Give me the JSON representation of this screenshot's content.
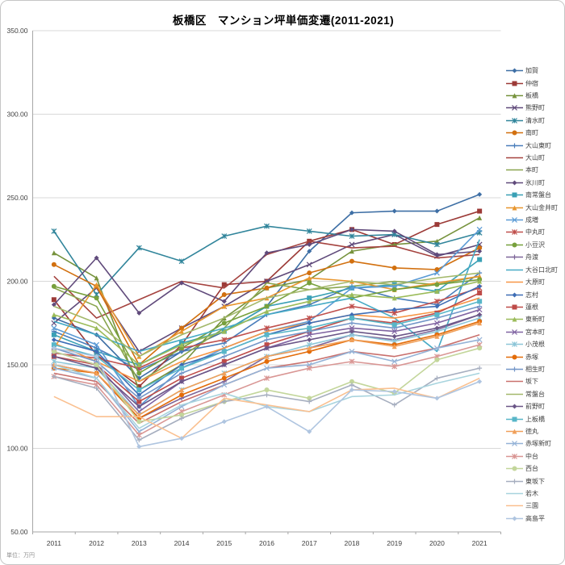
{
  "window": {
    "title": "板橋区　マンション坪単価変遷(2011-2021)"
  },
  "colors": {
    "gridline": "#d9d9d9",
    "axis": "#a6a6a6",
    "tick_label": "#3f3f3f",
    "title": "#000000",
    "frame_border": "#c6c6c6"
  },
  "chart_data": {
    "type": "line",
    "title": "板橋区　マンション坪単価変遷(2011-2021)",
    "unit_note": "単位：万円",
    "x": [
      2011,
      2012,
      2013,
      2014,
      2015,
      2016,
      2017,
      2018,
      2019,
      2020,
      2021
    ],
    "x_tick_labels": [
      "2011",
      "2012",
      "2013",
      "2014",
      "2015",
      "2016",
      "2017",
      "2018",
      "2019",
      "2020",
      "2021"
    ],
    "y_axis": {
      "min": 50,
      "max": 350,
      "step": 50
    },
    "y_tick_labels": [
      "350.00",
      "300.00",
      "250.00",
      "200.00",
      "150.00",
      "100.00",
      "50.00"
    ],
    "grid": true,
    "legend_position": "right",
    "series": [
      {
        "name": "加賀",
        "color": "#3e6fa5",
        "marker": "diamond",
        "values": [
          178,
          168,
          142,
          158,
          170,
          185,
          218,
          241,
          242,
          242,
          252
        ]
      },
      {
        "name": "仲宿",
        "color": "#9c3a37",
        "marker": "square",
        "values": [
          189,
          156,
          137,
          162,
          198,
          200,
          224,
          231,
          222,
          234,
          242
        ]
      },
      {
        "name": "板橋",
        "color": "#76923c",
        "marker": "triangle",
        "values": [
          217,
          202,
          135,
          150,
          178,
          196,
          201,
          218,
          222,
          224,
          238
        ]
      },
      {
        "name": "熊野町",
        "color": "#5f497a",
        "marker": "x",
        "values": [
          175,
          196,
          158,
          172,
          185,
          200,
          210,
          222,
          228,
          215,
          222
        ]
      },
      {
        "name": "清水町",
        "color": "#31859b",
        "marker": "asterisk",
        "values": [
          230,
          192,
          220,
          212,
          227,
          233,
          230,
          227,
          228,
          222,
          229
        ]
      },
      {
        "name": "南町",
        "color": "#d2700f",
        "marker": "circle",
        "values": [
          210,
          197,
          150,
          172,
          192,
          196,
          205,
          212,
          208,
          207,
          220
        ]
      },
      {
        "name": "大山東町",
        "color": "#4a7ebb",
        "marker": "plus",
        "values": [
          170,
          160,
          147,
          158,
          163,
          180,
          186,
          197,
          190,
          186,
          205
        ]
      },
      {
        "name": "大山町",
        "color": "#a5433f",
        "marker": "none",
        "values": [
          203,
          178,
          189,
          200,
          196,
          216,
          224,
          220,
          221,
          214,
          216
        ]
      },
      {
        "name": "本町",
        "color": "#89a54e",
        "marker": "none",
        "values": [
          196,
          185,
          140,
          155,
          172,
          199,
          195,
          197,
          200,
          198,
          203
        ]
      },
      {
        "name": "氷川町",
        "color": "#604a7b",
        "marker": "diamond",
        "values": [
          186,
          214,
          181,
          199,
          188,
          217,
          222,
          231,
          230,
          216,
          218
        ]
      },
      {
        "name": "南常盤台",
        "color": "#3aa0b5",
        "marker": "square",
        "values": [
          168,
          158,
          150,
          163,
          170,
          185,
          190,
          196,
          198,
          194,
          213
        ]
      },
      {
        "name": "大山金井町",
        "color": "#e8962e",
        "marker": "triangle",
        "values": [
          160,
          198,
          155,
          170,
          185,
          190,
          202,
          200,
          195,
          199,
          203
        ]
      },
      {
        "name": "成増",
        "color": "#5b9bd5",
        "marker": "x",
        "values": [
          172,
          162,
          125,
          148,
          160,
          170,
          176,
          196,
          197,
          205,
          231
        ]
      },
      {
        "name": "中丸町",
        "color": "#c0504d",
        "marker": "asterisk",
        "values": [
          157,
          154,
          148,
          160,
          165,
          172,
          178,
          185,
          181,
          188,
          196
        ]
      },
      {
        "name": "小豆沢",
        "color": "#77a03c",
        "marker": "circle",
        "values": [
          197,
          190,
          145,
          160,
          175,
          185,
          199,
          190,
          195,
          198,
          201
        ]
      },
      {
        "name": "舟渡",
        "color": "#7e6699",
        "marker": "plus",
        "values": [
          150,
          145,
          118,
          130,
          140,
          155,
          160,
          168,
          165,
          171,
          180
        ]
      },
      {
        "name": "大谷口北町",
        "color": "#46aac5",
        "marker": "none",
        "values": [
          176,
          168,
          158,
          165,
          172,
          180,
          185,
          190,
          178,
          158,
          225
        ]
      },
      {
        "name": "大原町",
        "color": "#f79646",
        "marker": "none",
        "values": [
          163,
          152,
          140,
          152,
          160,
          170,
          175,
          180,
          178,
          182,
          190
        ]
      },
      {
        "name": "志村",
        "color": "#3e6db5",
        "marker": "diamond",
        "values": [
          165,
          158,
          132,
          150,
          158,
          168,
          175,
          180,
          183,
          185,
          197
        ]
      },
      {
        "name": "蓮根",
        "color": "#be4b48",
        "marker": "square",
        "values": [
          155,
          150,
          128,
          142,
          152,
          162,
          170,
          178,
          175,
          181,
          193
        ]
      },
      {
        "name": "東新町",
        "color": "#9bbb59",
        "marker": "triangle",
        "values": [
          180,
          172,
          150,
          162,
          170,
          182,
          188,
          192,
          190,
          194,
          200
        ]
      },
      {
        "name": "宮本町",
        "color": "#8064a2",
        "marker": "x",
        "values": [
          158,
          150,
          122,
          140,
          150,
          160,
          168,
          172,
          170,
          175,
          183
        ]
      },
      {
        "name": "小茂根",
        "color": "#8dc6d8",
        "marker": "asterisk",
        "values": [
          152,
          148,
          120,
          135,
          145,
          155,
          162,
          168,
          164,
          170,
          178
        ]
      },
      {
        "name": "赤塚",
        "color": "#e36c09",
        "marker": "circle",
        "values": [
          148,
          145,
          118,
          132,
          142,
          152,
          158,
          165,
          162,
          168,
          176
        ]
      },
      {
        "name": "相生町",
        "color": "#7396c8",
        "marker": "plus",
        "values": [
          160,
          152,
          130,
          145,
          155,
          165,
          170,
          175,
          172,
          178,
          185
        ]
      },
      {
        "name": "坂下",
        "color": "#c9706d",
        "marker": "none",
        "values": [
          145,
          140,
          115,
          128,
          138,
          148,
          152,
          158,
          155,
          160,
          168
        ]
      },
      {
        "name": "常盤台",
        "color": "#a3b86a",
        "marker": "none",
        "values": [
          185,
          175,
          155,
          168,
          178,
          190,
          195,
          200,
          198,
          202,
          205
        ]
      },
      {
        "name": "前野町",
        "color": "#6b5687",
        "marker": "diamond",
        "values": [
          155,
          148,
          125,
          140,
          150,
          160,
          165,
          170,
          167,
          172,
          180
        ]
      },
      {
        "name": "上板橋",
        "color": "#58b6c8",
        "marker": "square",
        "values": [
          162,
          155,
          135,
          148,
          158,
          168,
          172,
          178,
          174,
          180,
          188
        ]
      },
      {
        "name": "徳丸",
        "color": "#f0a05a",
        "marker": "triangle",
        "values": [
          150,
          145,
          120,
          135,
          145,
          155,
          160,
          165,
          161,
          167,
          175
        ]
      },
      {
        "name": "赤塚新町",
        "color": "#95b3d7",
        "marker": "x",
        "values": [
          148,
          142,
          110,
          125,
          138,
          148,
          150,
          158,
          152,
          160,
          165
        ]
      },
      {
        "name": "中台",
        "color": "#d99694",
        "marker": "asterisk",
        "values": [
          143,
          138,
          108,
          122,
          132,
          142,
          148,
          152,
          149,
          155,
          162
        ]
      },
      {
        "name": "西台",
        "color": "#c3d69b",
        "marker": "circle",
        "values": [
          158,
          150,
          116,
          120,
          128,
          135,
          130,
          140,
          133,
          153,
          160
        ]
      },
      {
        "name": "東坂下",
        "color": "#a6aebf",
        "marker": "plus",
        "values": [
          143,
          136,
          105,
          118,
          128,
          132,
          128,
          138,
          126,
          142,
          148
        ]
      },
      {
        "name": "若木",
        "color": "#a8d4de",
        "marker": "none",
        "values": [
          150,
          142,
          112,
          126,
          133,
          125,
          122,
          131,
          132,
          139,
          145
        ]
      },
      {
        "name": "三園",
        "color": "#fac090",
        "marker": "none",
        "values": [
          131,
          119,
          119,
          106,
          130,
          126,
          122,
          135,
          136,
          130,
          142
        ]
      },
      {
        "name": "高島平",
        "color": "#afc5e0",
        "marker": "diamond",
        "values": [
          160,
          155,
          101,
          106,
          116,
          125,
          110,
          135,
          134,
          130,
          140
        ]
      }
    ]
  }
}
